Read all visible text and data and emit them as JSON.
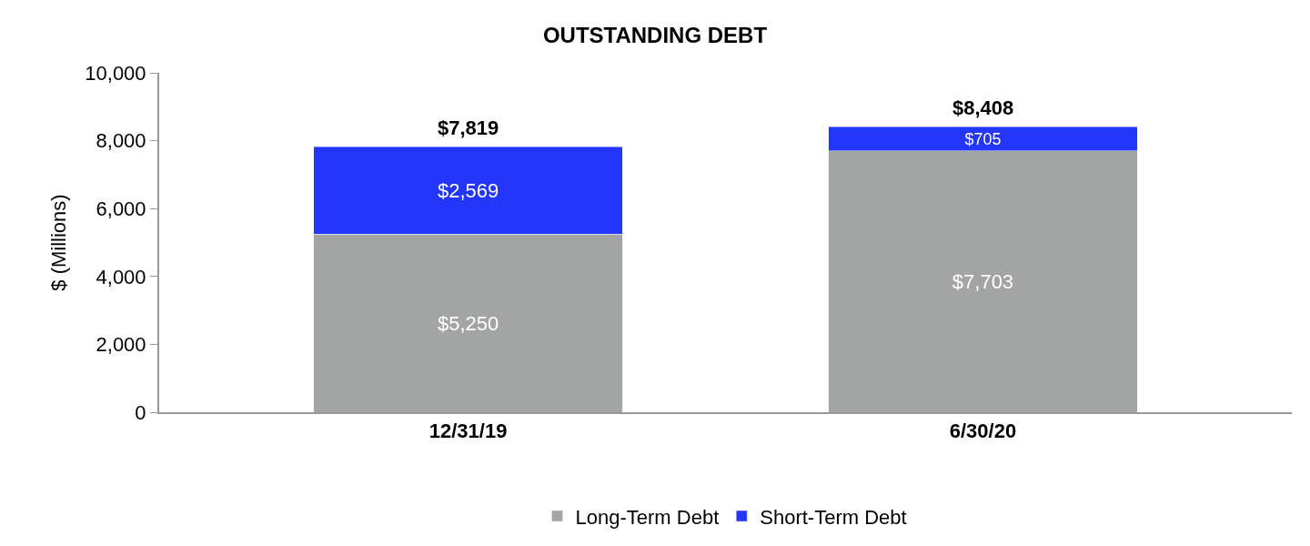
{
  "chart_data": {
    "type": "bar",
    "title": "OUTSTANDING DEBT",
    "ylabel": "$ (Millions)",
    "categories": [
      "12/31/19",
      "6/30/20"
    ],
    "stacked": true,
    "series": [
      {
        "name": "Long-Term Debt",
        "color": "#a3a5a4",
        "values": [
          5250,
          7703
        ],
        "value_labels": [
          "$5,250",
          "$7,703"
        ]
      },
      {
        "name": "Short-Term Debt",
        "color": "#2336fa",
        "values": [
          2569,
          705
        ],
        "value_labels": [
          "$2,569",
          "$705"
        ]
      }
    ],
    "totals": [
      "$7,819",
      "$8,408"
    ],
    "ylim": [
      0,
      10000
    ],
    "yticks": [
      {
        "value": 0,
        "label": "0"
      },
      {
        "value": 2000,
        "label": "2,000"
      },
      {
        "value": 4000,
        "label": "4,000"
      },
      {
        "value": 6000,
        "label": "6,000"
      },
      {
        "value": 8000,
        "label": "8,000"
      },
      {
        "value": 10000,
        "label": "10,000"
      }
    ],
    "legend": "bottom"
  }
}
